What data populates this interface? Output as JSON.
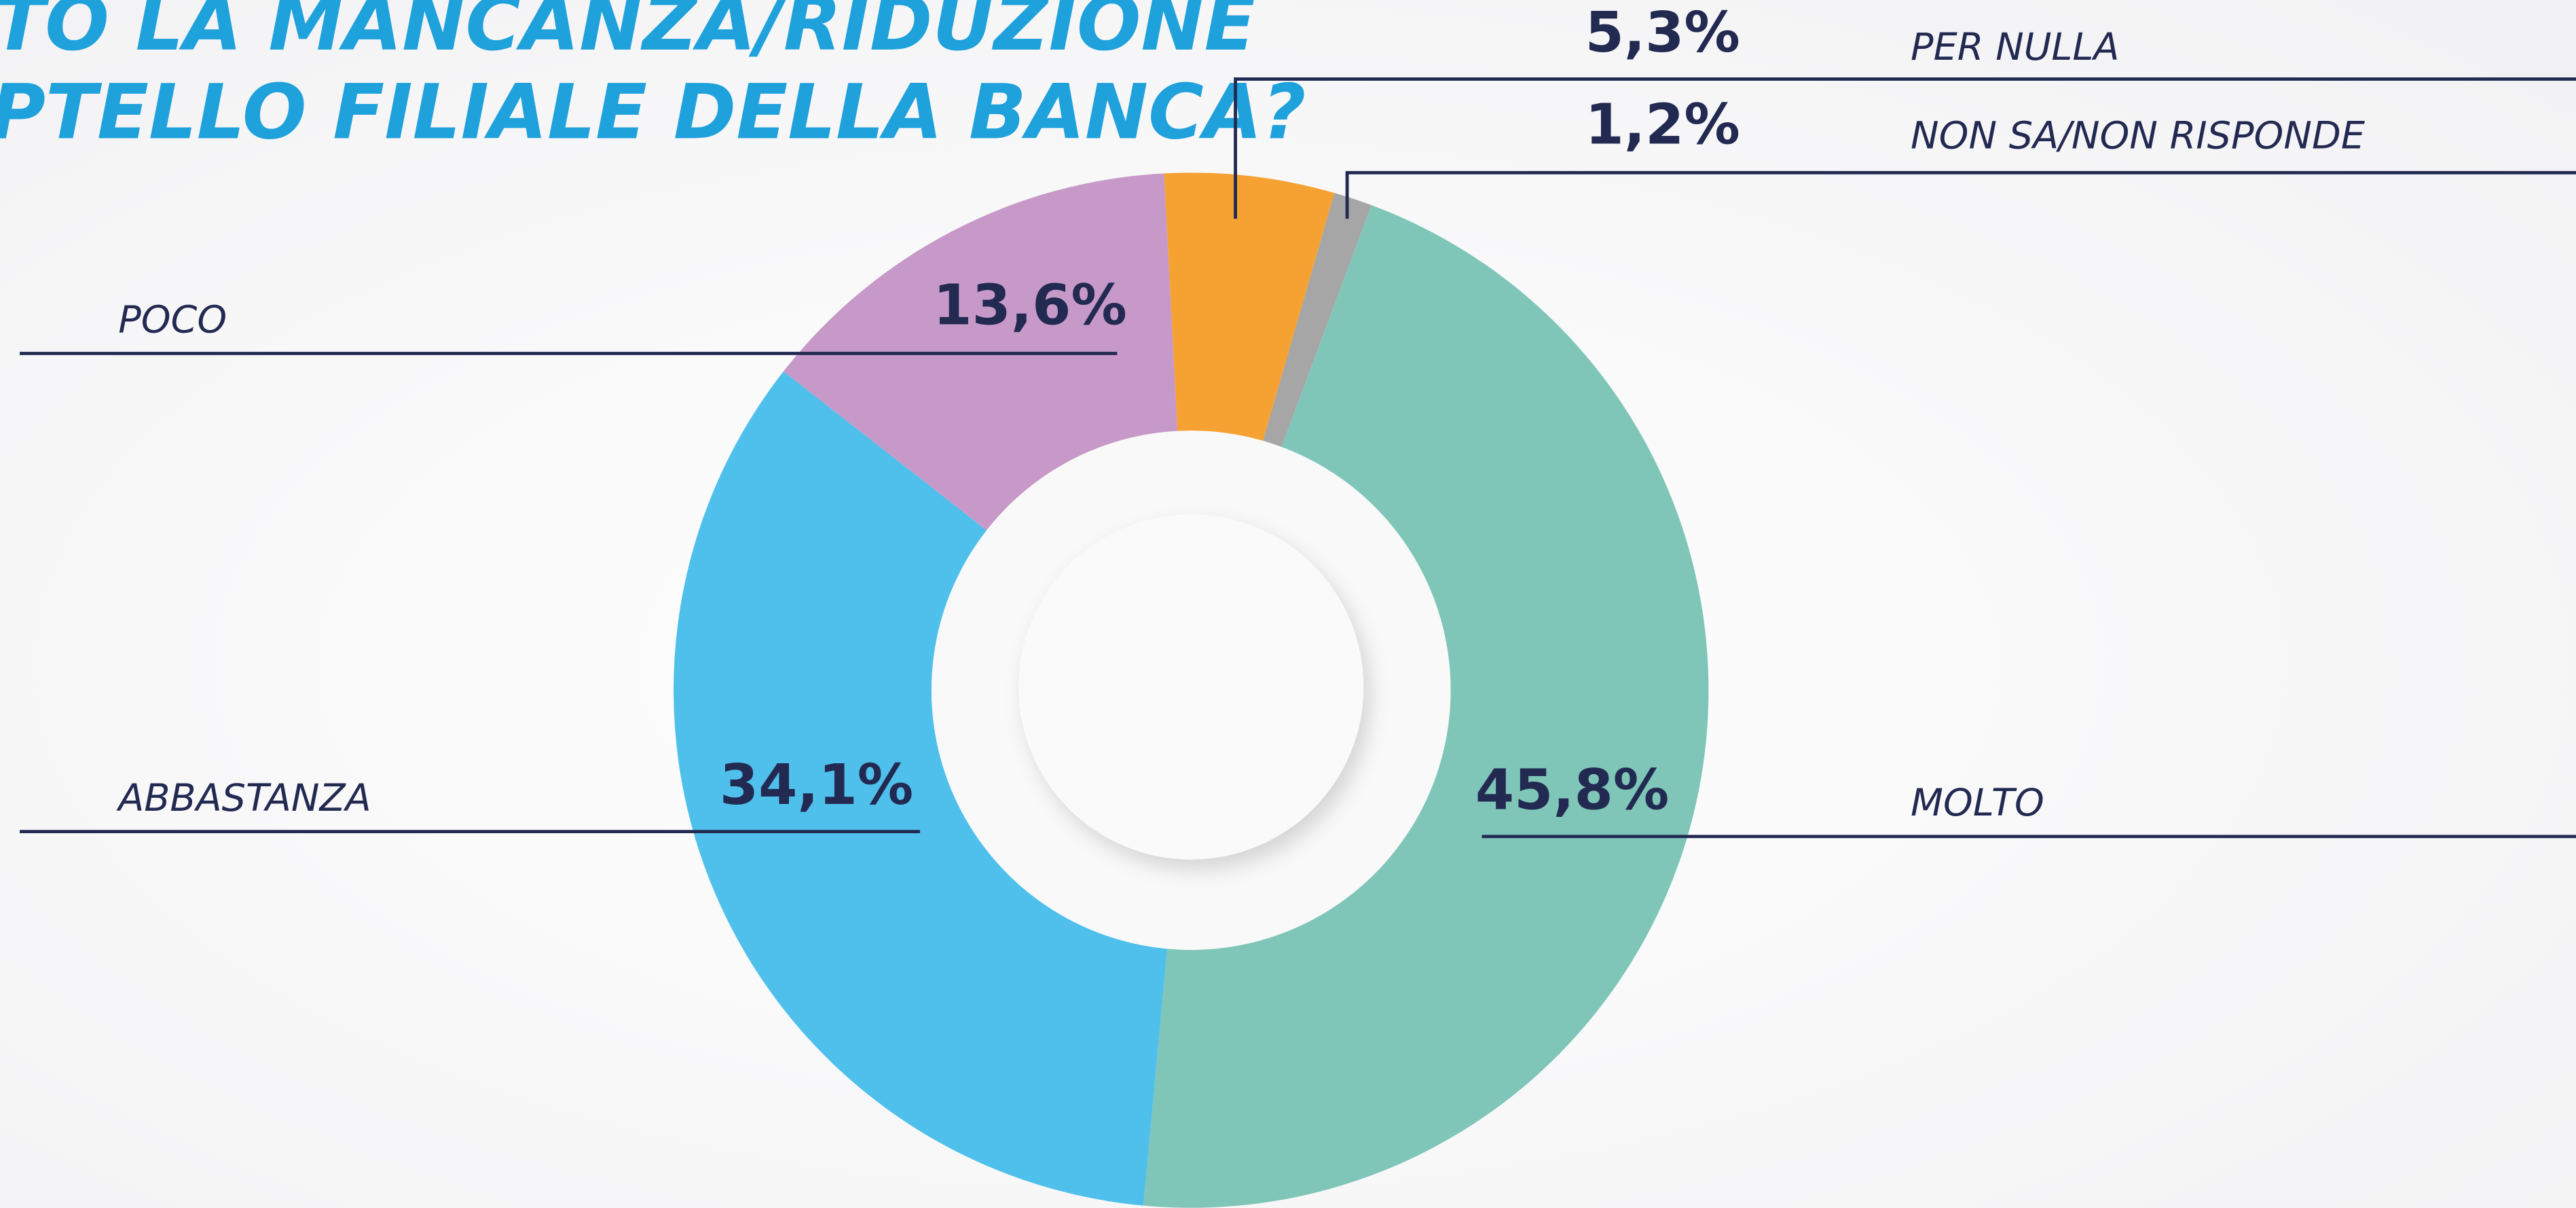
{
  "chart_data": {
    "type": "pie",
    "title": [
      "TO LA MANCANZA/RIDUZIONE",
      "PTELLO FILIALE DELLA BANCA?"
    ],
    "categories": [
      "PER NULLA",
      "NON SA/NON RISPONDE",
      "MOLTO",
      "ABBASTANZA",
      "POCO"
    ],
    "values": [
      5.3,
      1.2,
      45.8,
      34.1,
      13.6
    ],
    "value_labels": [
      "5,3%",
      "1,2%",
      "45,8%",
      "34,1%",
      "13,6%"
    ],
    "colors": [
      "#f5a233",
      "#a6a6a6",
      "#7fc6b9",
      "#4fc0ec",
      "#c799c8"
    ],
    "donut": true
  }
}
